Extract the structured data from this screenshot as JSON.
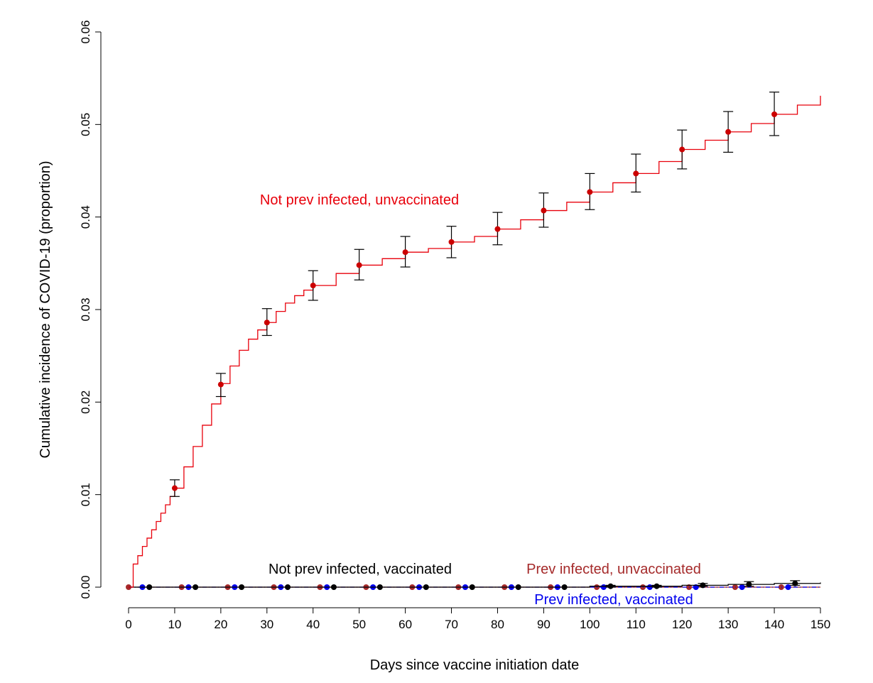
{
  "chart_data": {
    "type": "line",
    "xlabel": "Days since vaccine initiation date",
    "ylabel": "Cumulative incidence of COVID-19 (proportion)",
    "xlim": [
      0,
      150
    ],
    "ylim": [
      0,
      0.06
    ],
    "x_ticks": [
      0,
      10,
      20,
      30,
      40,
      50,
      60,
      70,
      80,
      90,
      100,
      110,
      120,
      130,
      140,
      150
    ],
    "x_tick_labels": [
      "0",
      "10",
      "20",
      "30",
      "40",
      "50",
      "60",
      "70",
      "80",
      "90",
      "100",
      "110",
      "120",
      "130",
      "140",
      "150"
    ],
    "y_ticks": [
      0,
      0.01,
      0.02,
      0.03,
      0.04,
      0.05,
      0.06
    ],
    "y_tick_labels": [
      "0.00",
      "0.01",
      "0.02",
      "0.03",
      "0.04",
      "0.05",
      "0.06"
    ],
    "grid": false,
    "legend": "none",
    "series": [
      {
        "name": "Not prev infected, unvaccinated",
        "color": "#e8000b",
        "marker_color": "#cc0000",
        "line_style": "step",
        "curve_x": [
          0,
          1,
          2,
          3,
          4,
          5,
          6,
          7,
          8,
          9,
          10,
          12,
          14,
          16,
          18,
          20,
          22,
          24,
          26,
          28,
          30,
          32,
          34,
          36,
          38,
          40,
          45,
          50,
          55,
          60,
          65,
          70,
          75,
          80,
          85,
          90,
          95,
          100,
          105,
          110,
          115,
          120,
          125,
          130,
          135,
          140,
          145,
          150
        ],
        "curve_y": [
          0,
          0.0025,
          0.0034,
          0.0044,
          0.0053,
          0.0062,
          0.0071,
          0.008,
          0.0089,
          0.0098,
          0.0107,
          0.013,
          0.0152,
          0.0175,
          0.0198,
          0.022,
          0.0239,
          0.0256,
          0.0268,
          0.0278,
          0.0286,
          0.0298,
          0.0307,
          0.0315,
          0.0321,
          0.0326,
          0.0339,
          0.0348,
          0.0355,
          0.0362,
          0.0366,
          0.0373,
          0.0379,
          0.0387,
          0.0397,
          0.0407,
          0.0416,
          0.0427,
          0.0437,
          0.0447,
          0.046,
          0.0473,
          0.0483,
          0.0492,
          0.0501,
          0.0511,
          0.0521,
          0.0531
        ],
        "points_x": [
          10,
          20,
          30,
          40,
          50,
          60,
          70,
          80,
          90,
          100,
          110,
          120,
          130,
          140
        ],
        "points_y": [
          0.0107,
          0.0219,
          0.0286,
          0.0326,
          0.0348,
          0.0362,
          0.0373,
          0.0387,
          0.0407,
          0.0427,
          0.0447,
          0.0473,
          0.0492,
          0.0511
        ],
        "ci_low": [
          0.0098,
          0.0206,
          0.0272,
          0.031,
          0.0332,
          0.0346,
          0.0356,
          0.037,
          0.0389,
          0.0408,
          0.0427,
          0.0452,
          0.047,
          0.0488
        ],
        "ci_high": [
          0.0116,
          0.0231,
          0.0301,
          0.0342,
          0.0365,
          0.0379,
          0.039,
          0.0405,
          0.0426,
          0.0447,
          0.0468,
          0.0494,
          0.0514,
          0.0535
        ]
      },
      {
        "name": "Not prev infected, vaccinated",
        "color": "#000000",
        "marker_color": "#000000",
        "line_style": "step",
        "curve_x": [
          0,
          90,
          100,
          110,
          120,
          130,
          140,
          150
        ],
        "curve_y": [
          0,
          0,
          0.0001,
          0.0001,
          0.0002,
          0.0003,
          0.0004,
          0.0005
        ],
        "points_x": [
          4.5,
          14.5,
          24.5,
          34.5,
          44.5,
          54.5,
          64.5,
          74.5,
          84.5,
          94.5,
          104.5,
          114.5,
          124.5,
          134.5,
          144.5
        ],
        "points_y": [
          0,
          0,
          0,
          0,
          0,
          0,
          0,
          0,
          0,
          0,
          0.0001,
          0.0001,
          0.0002,
          0.0003,
          0.0004
        ],
        "ci_low": [
          0,
          0,
          0,
          0,
          0,
          0,
          0,
          0,
          0,
          0,
          0,
          0,
          0.0001,
          0.0001,
          0.0002
        ],
        "ci_high": [
          0,
          0,
          0,
          0,
          0,
          0,
          0,
          0,
          0,
          0,
          0.0002,
          0.0002,
          0.0004,
          0.0006,
          0.0007
        ]
      },
      {
        "name": "Prev infected, unvaccinated",
        "color": "#a52a2a",
        "marker_color": "#a52a2a",
        "line_style": "step",
        "curve_x": [
          0,
          150
        ],
        "curve_y": [
          0,
          0
        ],
        "points_x": [
          0,
          11.5,
          21.5,
          31.5,
          41.5,
          51.5,
          61.5,
          71.5,
          81.5,
          91.5,
          101.5,
          111.5,
          121.5,
          131.5,
          141.5
        ],
        "points_y": [
          0,
          0,
          0,
          0,
          0,
          0,
          0,
          0,
          0,
          0,
          0,
          0,
          0,
          0,
          0
        ]
      },
      {
        "name": "Prev infected, vaccinated",
        "color": "#0000ee",
        "marker_color": "#0000ee",
        "line_style": "dash-dot",
        "curve_x": [
          0,
          150
        ],
        "curve_y": [
          0,
          0
        ],
        "points_x": [
          3,
          13,
          23,
          33,
          43,
          53,
          63,
          73,
          83,
          93,
          103,
          113,
          123,
          133,
          143
        ],
        "points_y": [
          0,
          0,
          0,
          0,
          0,
          0,
          0,
          0,
          0,
          0,
          0,
          0,
          0,
          0,
          0
        ]
      }
    ],
    "point_x_series2": [
      1.5
    ]
  },
  "annotations": [
    {
      "text": "Not prev infected, unvaccinated",
      "color": "#e8000b"
    },
    {
      "text": "Not prev infected, vaccinated",
      "color": "#000000"
    },
    {
      "text": "Prev infected, unvaccinated",
      "color": "#a52a2a"
    },
    {
      "text": "Prev infected, vaccinated",
      "color": "#0000ee"
    }
  ]
}
